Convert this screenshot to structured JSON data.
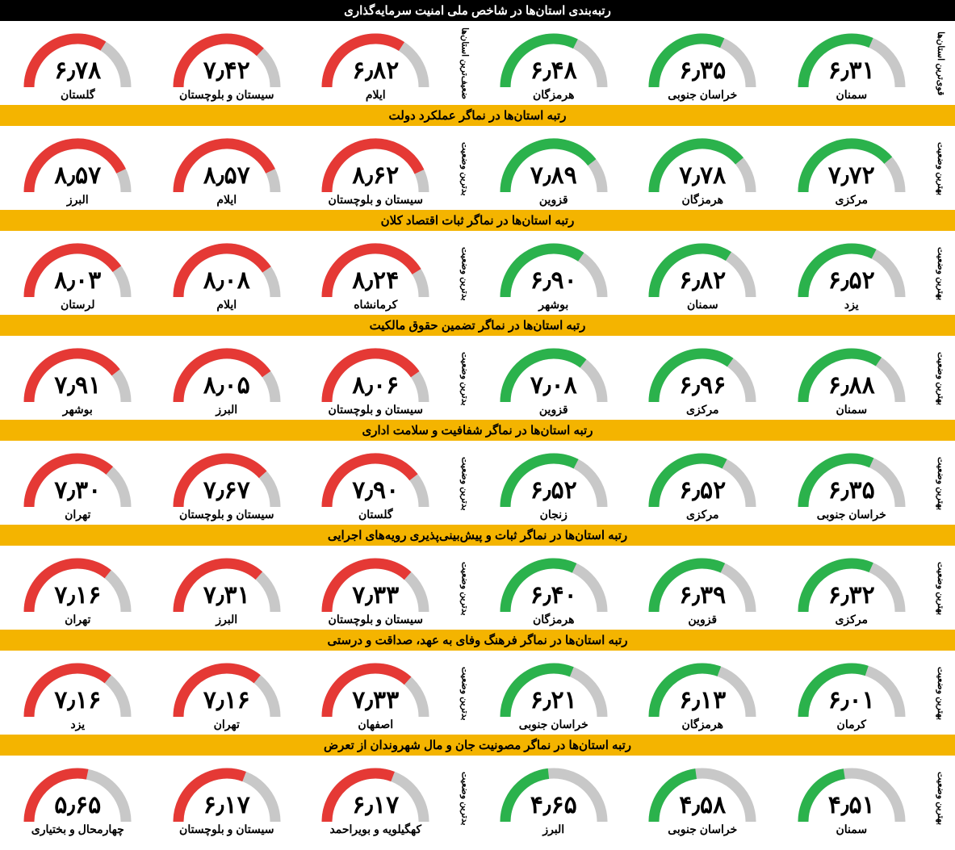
{
  "colors": {
    "best": "#2bb24c",
    "worst": "#e53935",
    "track": "#c8c8c8",
    "header_black_bg": "#000000",
    "header_black_fg": "#ffffff",
    "header_orange_bg": "#f4b400",
    "header_orange_fg": "#000000"
  },
  "gauge": {
    "min": 0,
    "max": 10,
    "stroke_width": 13,
    "radius": 60,
    "width": 160,
    "height": 80
  },
  "sections": [
    {
      "title": "رتبه‌بندی استان‌ها در شاخص ملی امنیت سرمایه‌گذاری",
      "header_style": "black",
      "best_label": "قوی‌ترین استان‌ها",
      "worst_label": "ضعیف‌ترین استان‌ها",
      "best": [
        {
          "name": "سمنان",
          "value": 6.31
        },
        {
          "name": "خراسان جنوبی",
          "value": 6.35
        },
        {
          "name": "هرمزگان",
          "value": 6.48
        }
      ],
      "worst": [
        {
          "name": "ایلام",
          "value": 6.82
        },
        {
          "name": "سیستان و بلوچستان",
          "value": 7.42
        },
        {
          "name": "گلستان",
          "value": 6.78
        }
      ]
    },
    {
      "title": "رتبه استان‌ها در نماگر عملکرد دولت",
      "header_style": "orange",
      "best_label": "بهترین وضعیت",
      "worst_label": "بدترین وضعیت",
      "best": [
        {
          "name": "مرکزی",
          "value": 7.72
        },
        {
          "name": "هرمزگان",
          "value": 7.78
        },
        {
          "name": "قزوین",
          "value": 7.89
        }
      ],
      "worst": [
        {
          "name": "سیستان و بلوچستان",
          "value": 8.62
        },
        {
          "name": "ایلام",
          "value": 8.57
        },
        {
          "name": "البرز",
          "value": 8.57
        }
      ]
    },
    {
      "title": "رتبه استان‌ها در نماگر ثبات اقتصاد کلان",
      "header_style": "orange",
      "best_label": "بهترین وضعیت",
      "worst_label": "بدترین وضعیت",
      "best": [
        {
          "name": "یزد",
          "value": 6.52
        },
        {
          "name": "سمنان",
          "value": 6.82
        },
        {
          "name": "بوشهر",
          "value": 6.9
        }
      ],
      "worst": [
        {
          "name": "کرمانشاه",
          "value": 8.24
        },
        {
          "name": "ایلام",
          "value": 8.08
        },
        {
          "name": "لرستان",
          "value": 8.03
        }
      ]
    },
    {
      "title": "رتبه استان‌ها در نماگر تضمین حقوق مالکیت",
      "header_style": "orange",
      "best_label": "بهترین وضعیت",
      "worst_label": "بدترین وضعیت",
      "best": [
        {
          "name": "سمنان",
          "value": 6.88
        },
        {
          "name": "مرکزی",
          "value": 6.96
        },
        {
          "name": "قزوین",
          "value": 7.08
        }
      ],
      "worst": [
        {
          "name": "سیستان و بلوچستان",
          "value": 8.06
        },
        {
          "name": "البرز",
          "value": 8.05
        },
        {
          "name": "بوشهر",
          "value": 7.91
        }
      ]
    },
    {
      "title": "رتبه استان‌ها در نماگر شفافیت و سلامت اداری",
      "header_style": "orange",
      "best_label": "بهترین وضعیت",
      "worst_label": "بدترین وضعیت",
      "best": [
        {
          "name": "خراسان جنوبی",
          "value": 6.35
        },
        {
          "name": "مرکزی",
          "value": 6.52
        },
        {
          "name": "زنجان",
          "value": 6.52
        }
      ],
      "worst": [
        {
          "name": "گلستان",
          "value": 7.9
        },
        {
          "name": "سیستان و بلوچستان",
          "value": 7.67
        },
        {
          "name": "تهران",
          "value": 7.3
        }
      ]
    },
    {
      "title": "رتبه استان‌ها در نماگر ثبات و پیش‌بینی‌پذیری رویه‌های اجرایی",
      "header_style": "orange",
      "best_label": "بهترین وضعیت",
      "worst_label": "بدترین وضعیت",
      "best": [
        {
          "name": "مرکزی",
          "value": 6.32
        },
        {
          "name": "قزوین",
          "value": 6.39
        },
        {
          "name": "هرمزگان",
          "value": 6.4
        }
      ],
      "worst": [
        {
          "name": "سیستان و بلوچستان",
          "value": 7.33
        },
        {
          "name": "البرز",
          "value": 7.31
        },
        {
          "name": "تهران",
          "value": 7.16
        }
      ]
    },
    {
      "title": "رتبه استان‌ها در نماگر فرهنگ وفای به عهد، صداقت و درستی",
      "header_style": "orange",
      "best_label": "بهترین وضعیت",
      "worst_label": "بدترین وضعیت",
      "best": [
        {
          "name": "کرمان",
          "value": 6.01
        },
        {
          "name": "هرمزگان",
          "value": 6.13
        },
        {
          "name": "خراسان جنوبی",
          "value": 6.21
        }
      ],
      "worst": [
        {
          "name": "اصفهان",
          "value": 7.33
        },
        {
          "name": "تهران",
          "value": 7.16
        },
        {
          "name": "یزد",
          "value": 7.16
        }
      ]
    },
    {
      "title": "رتبه استان‌ها در نماگر مصونیت جان و مال شهروندان از تعرض",
      "header_style": "orange",
      "best_label": "بهترین وضعیت",
      "worst_label": "بدترین وضعیت",
      "best": [
        {
          "name": "سمنان",
          "value": 4.51
        },
        {
          "name": "خراسان جنوبی",
          "value": 4.58
        },
        {
          "name": "البرز",
          "value": 4.65
        }
      ],
      "worst": [
        {
          "name": "کهگیلویه و بویراحمد",
          "value": 6.17
        },
        {
          "name": "سیستان و بلوچستان",
          "value": 6.17
        },
        {
          "name": "چهارمحال و بختیاری",
          "value": 5.65
        }
      ]
    }
  ]
}
